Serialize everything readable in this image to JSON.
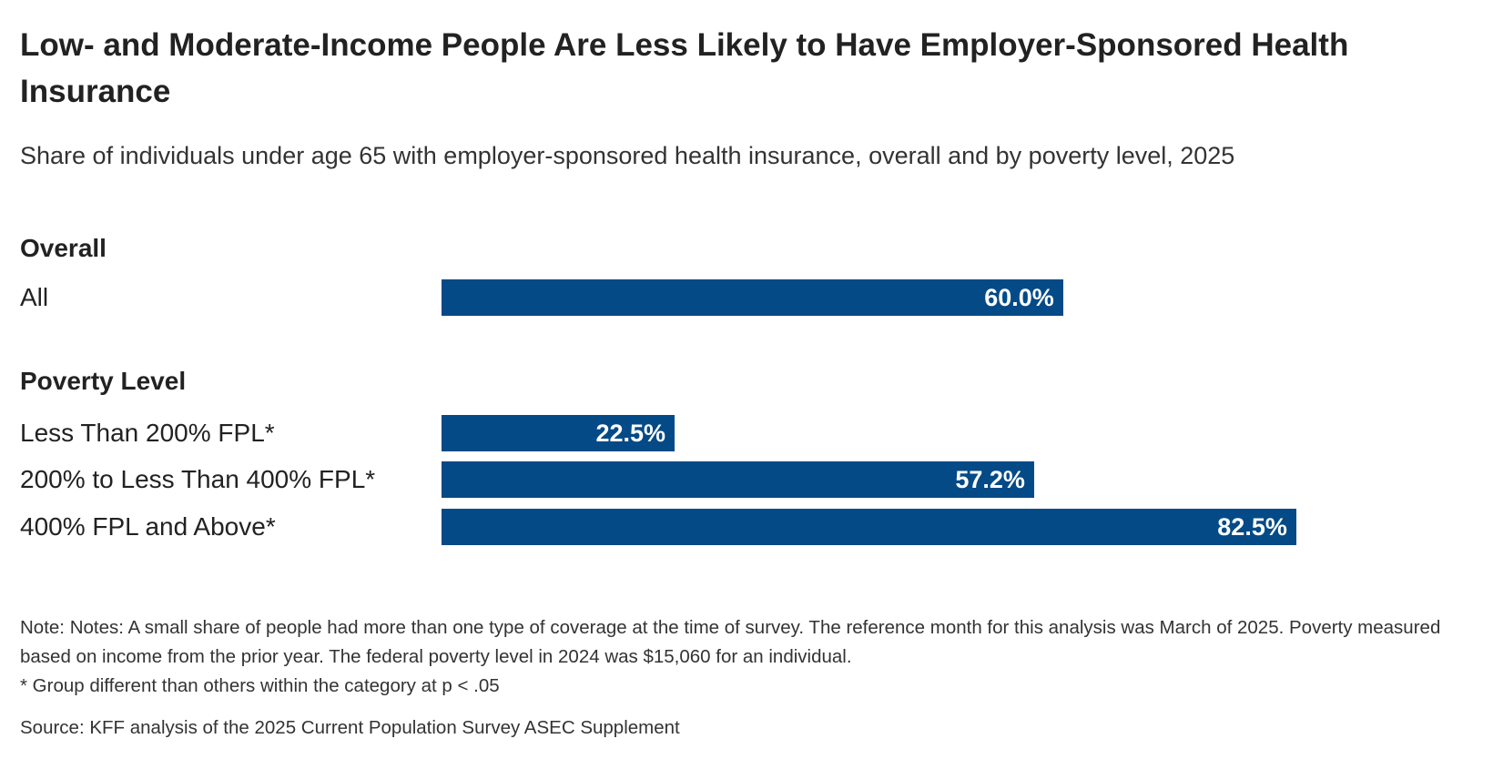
{
  "chart_data": {
    "type": "bar",
    "orientation": "horizontal",
    "title": "Low- and Moderate-Income People Are Less Likely to Have Employer-Sponsored Health Insurance",
    "subtitle": "Share of individuals under age 65 with employer-sponsored health insurance, overall and by poverty level, 2025",
    "groups": [
      {
        "name": "Overall",
        "categories": [
          "All"
        ],
        "values": [
          60.0
        ],
        "labels": [
          "60.0%"
        ]
      },
      {
        "name": "Poverty Level",
        "categories": [
          "Less Than 200% FPL*",
          "200% to Less Than 400% FPL*",
          "400% FPL and Above*"
        ],
        "values": [
          22.5,
          57.2,
          82.5
        ],
        "labels": [
          "22.5%",
          "57.2%",
          "82.5%"
        ]
      }
    ],
    "xlim": [
      0,
      100
    ],
    "grid": false,
    "bar_color": "#034a87",
    "notes": [
      "Note: Notes: A small share of people had more than one type of coverage at the time of survey. The reference month for this analysis was March of 2025. Poverty measured based on income from the prior year. The federal poverty level in 2024 was $15,060 for an individual.",
      "* Group different than others within the category at p < .05"
    ],
    "source": "Source: KFF analysis of the 2025 Current Population Survey ASEC Supplement"
  }
}
